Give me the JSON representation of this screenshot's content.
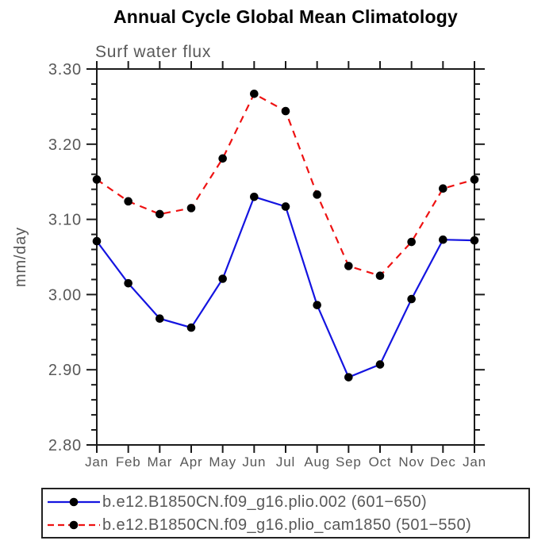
{
  "page": {
    "title": "Annual Cycle Global Mean Climatology"
  },
  "chart_data": {
    "type": "line",
    "title": "Annual Cycle Global Mean Climatology",
    "subtitle": "Surf water flux",
    "xlabel": "",
    "ylabel": "mm/day",
    "categories": [
      "Jan",
      "Feb",
      "Mar",
      "Apr",
      "May",
      "Jun",
      "Jul",
      "Aug",
      "Sep",
      "Oct",
      "Nov",
      "Dec",
      "Jan"
    ],
    "ylim": [
      2.8,
      3.3
    ],
    "ytick_major_step": 0.1,
    "ytick_minor_step": 0.02,
    "ytick_labels": [
      "2.80",
      "2.90",
      "3.00",
      "3.10",
      "3.20",
      "3.30"
    ],
    "grid": false,
    "legend_position": "bottom-box",
    "series": [
      {
        "name": "b.e12.B1850CN.f09_g16.plio.002 (601−650)",
        "color": "#1414e0",
        "line_style": "solid",
        "marker": "black-dot",
        "values": [
          3.071,
          3.015,
          2.968,
          2.956,
          3.021,
          3.13,
          3.117,
          2.986,
          2.89,
          2.907,
          2.994,
          3.073,
          3.072
        ]
      },
      {
        "name": "b.e12.B1850CN.f09_g16.plio_cam1850 (501−550)",
        "color": "#ee1212",
        "line_style": "dashed",
        "marker": "black-dot",
        "values": [
          3.153,
          3.124,
          3.107,
          3.115,
          3.181,
          3.267,
          3.244,
          3.133,
          3.038,
          3.025,
          3.07,
          3.141,
          3.153
        ]
      }
    ]
  },
  "colors": {
    "frame": "#1a1a1a",
    "tick": "#1a1a1a",
    "label_text": "#585858",
    "marker": "#000000",
    "title_text": "#000000"
  }
}
